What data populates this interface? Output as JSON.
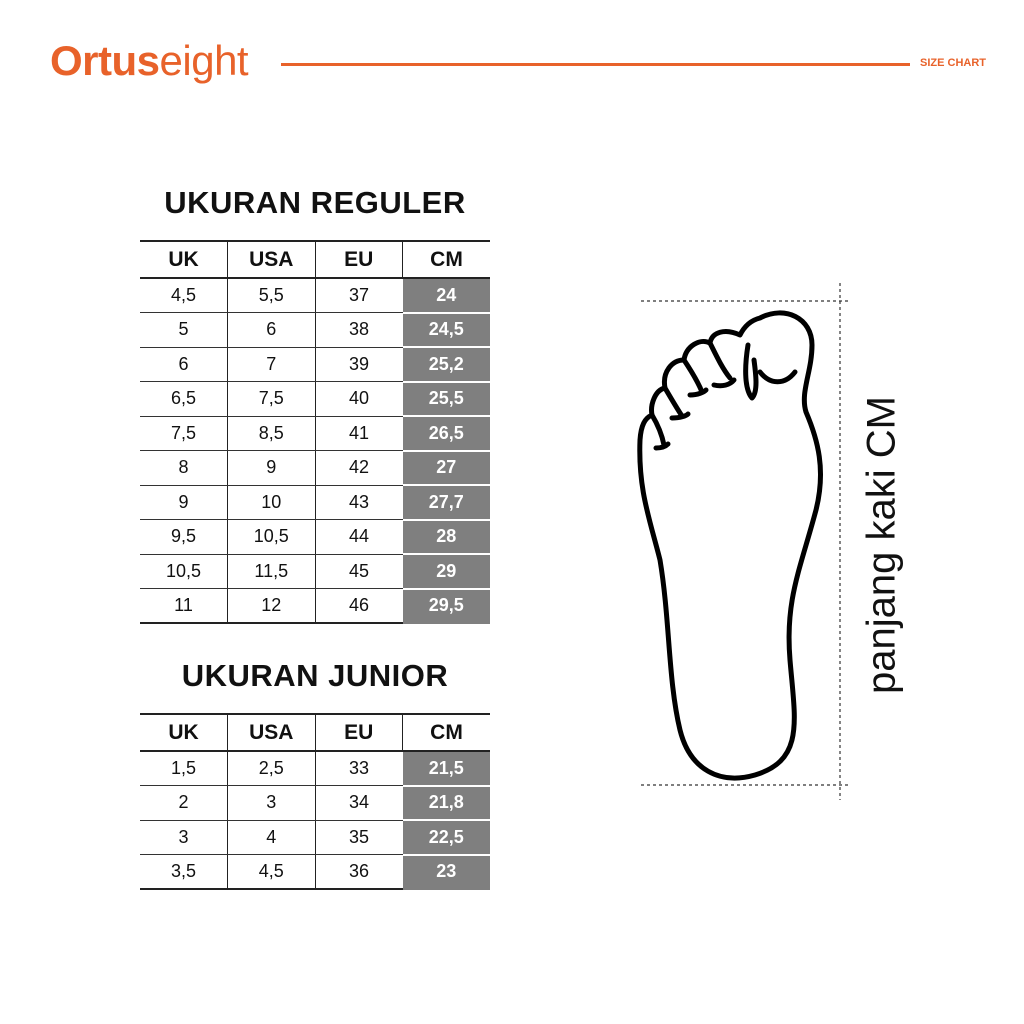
{
  "brand": {
    "bold": "Ortus",
    "light": "eight",
    "color": "#e8622a"
  },
  "header_label": "SIZE CHART",
  "columns": [
    "UK",
    "USA",
    "EU",
    "CM"
  ],
  "regular": {
    "title": "UKURAN REGULER",
    "rows": [
      [
        "4,5",
        "5,5",
        "37",
        "24"
      ],
      [
        "5",
        "6",
        "38",
        "24,5"
      ],
      [
        "6",
        "7",
        "39",
        "25,2"
      ],
      [
        "6,5",
        "7,5",
        "40",
        "25,5"
      ],
      [
        "7,5",
        "8,5",
        "41",
        "26,5"
      ],
      [
        "8",
        "9",
        "42",
        "27"
      ],
      [
        "9",
        "10",
        "43",
        "27,7"
      ],
      [
        "9,5",
        "10,5",
        "44",
        "28"
      ],
      [
        "10,5",
        "11,5",
        "45",
        "29"
      ],
      [
        "11",
        "12",
        "46",
        "29,5"
      ]
    ]
  },
  "junior": {
    "title": "UKURAN JUNIOR",
    "rows": [
      [
        "1,5",
        "2,5",
        "33",
        "21,5"
      ],
      [
        "2",
        "3",
        "34",
        "21,8"
      ],
      [
        "3",
        "4",
        "35",
        "22,5"
      ],
      [
        "3,5",
        "4,5",
        "36",
        "23"
      ]
    ]
  },
  "foot_label": "panjang kaki CM",
  "highlight_color": "#7f7f7f"
}
